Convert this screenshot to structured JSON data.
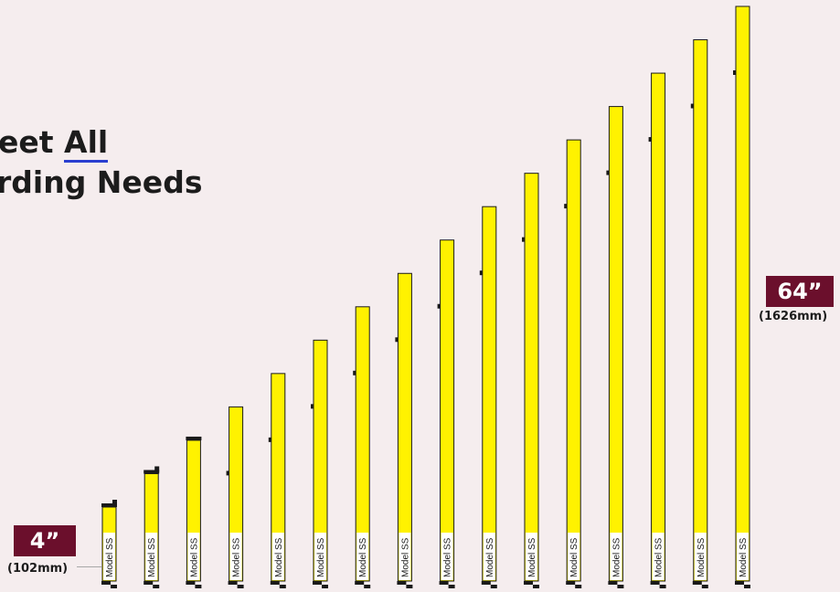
{
  "headline": {
    "line1_prefix": "eet ",
    "line1_emphasis": "All",
    "line2": "rding Needs"
  },
  "size_range": {
    "min_label": "4”",
    "min_metric": "(102mm)",
    "max_label": "64”",
    "max_metric": "(1626mm)"
  },
  "colors": {
    "bar_fill": "#fff200",
    "bar_stroke": "#1a1a1a",
    "tag_background": "#6b0f2c",
    "background": "#f5edee"
  },
  "models": {
    "lengths_in": [
      4,
      8,
      12,
      16,
      20,
      24,
      28,
      32,
      36,
      40,
      44,
      48,
      52,
      56,
      60,
      64
    ],
    "label": "Model SS"
  }
}
